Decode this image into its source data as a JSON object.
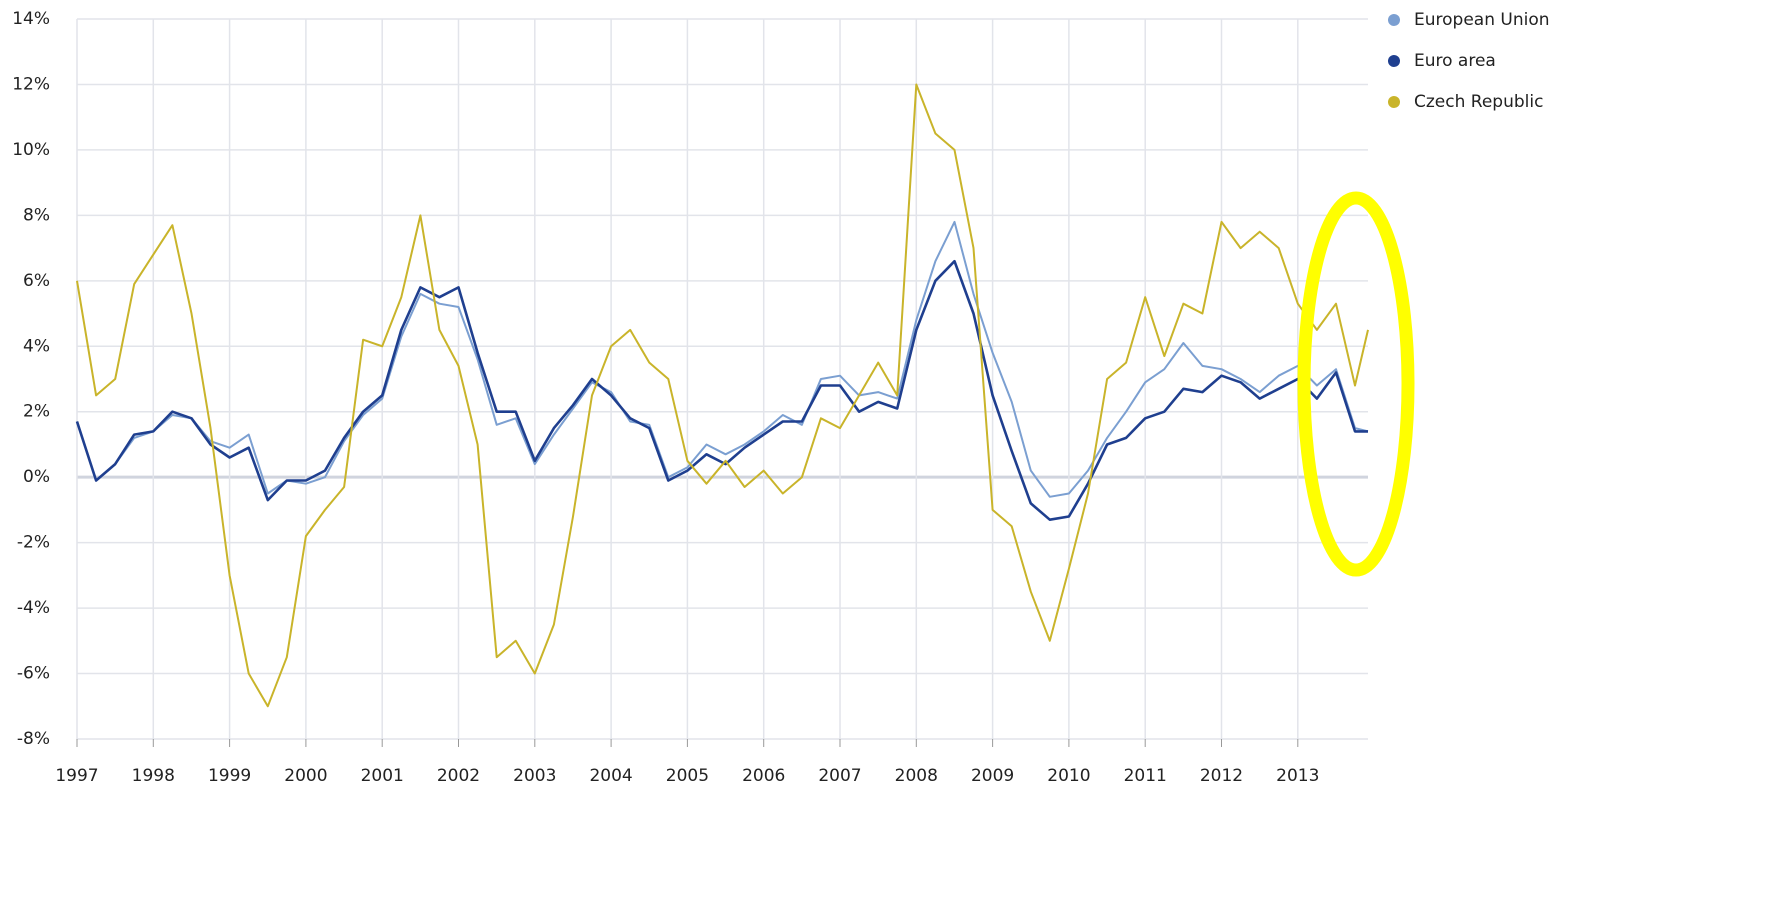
{
  "chart_data": {
    "type": "line",
    "x": [
      1997,
      1997.25,
      1997.5,
      1997.75,
      1998,
      1998.25,
      1998.5,
      1998.75,
      1999,
      1999.25,
      1999.5,
      1999.75,
      2000,
      2000.25,
      2000.5,
      2000.75,
      2001,
      2001.25,
      2001.5,
      2001.75,
      2002,
      2002.25,
      2002.5,
      2002.75,
      2003,
      2003.25,
      2003.5,
      2003.75,
      2004,
      2004.25,
      2004.5,
      2004.75,
      2005,
      2005.25,
      2005.5,
      2005.75,
      2006,
      2006.25,
      2006.5,
      2006.75,
      2007,
      2007.25,
      2007.5,
      2007.75,
      2008,
      2008.25,
      2008.5,
      2008.75,
      2009,
      2009.25,
      2009.5,
      2009.75,
      2010,
      2010.25,
      2010.5,
      2010.75,
      2011,
      2011.25,
      2011.5,
      2011.75,
      2012,
      2012.25,
      2012.5,
      2012.75,
      2013,
      2013.25,
      2013.5,
      2013.75,
      2013.92
    ],
    "series": [
      {
        "name": "European Union",
        "color": "#7b9fd1",
        "values": [
          1.7,
          -0.1,
          0.4,
          1.2,
          1.4,
          1.9,
          1.8,
          1.1,
          0.9,
          1.3,
          -0.5,
          -0.1,
          -0.2,
          0.0,
          1.1,
          1.9,
          2.4,
          4.3,
          5.6,
          5.3,
          5.2,
          3.6,
          1.6,
          1.8,
          0.4,
          1.3,
          2.1,
          2.9,
          2.6,
          1.7,
          1.6,
          0.0,
          0.3,
          1.0,
          0.7,
          1.0,
          1.4,
          1.9,
          1.6,
          3.0,
          3.1,
          2.5,
          2.6,
          2.4,
          4.8,
          6.6,
          7.8,
          5.6,
          3.8,
          2.3,
          0.2,
          -0.6,
          -0.5,
          0.2,
          1.2,
          2.0,
          2.9,
          3.3,
          4.1,
          3.4,
          3.3,
          3.0,
          2.6,
          3.1,
          3.4,
          2.8,
          3.3,
          1.5,
          1.4
        ]
      },
      {
        "name": "Euro area",
        "color": "#1f3f8f",
        "values": [
          1.7,
          -0.1,
          0.4,
          1.3,
          1.4,
          2.0,
          1.8,
          1.0,
          0.6,
          0.9,
          -0.7,
          -0.1,
          -0.1,
          0.2,
          1.2,
          2.0,
          2.5,
          4.5,
          5.8,
          5.5,
          5.8,
          3.8,
          2.0,
          2.0,
          0.5,
          1.5,
          2.2,
          3.0,
          2.5,
          1.8,
          1.5,
          -0.1,
          0.2,
          0.7,
          0.4,
          0.9,
          1.3,
          1.7,
          1.7,
          2.8,
          2.8,
          2.0,
          2.3,
          2.1,
          4.5,
          6.0,
          6.6,
          5.0,
          2.5,
          0.8,
          -0.8,
          -1.3,
          -1.2,
          -0.2,
          1.0,
          1.2,
          1.8,
          2.0,
          2.7,
          2.6,
          3.1,
          2.9,
          2.4,
          2.7,
          3.0,
          2.4,
          3.2,
          1.4,
          1.4
        ]
      },
      {
        "name": "Czech Republic",
        "color": "#c9b42a",
        "values": [
          6.0,
          2.5,
          3.0,
          5.9,
          6.8,
          7.7,
          5.0,
          1.5,
          -3.0,
          -6.0,
          -7.0,
          -5.5,
          -1.8,
          -1.0,
          -0.3,
          4.2,
          4.0,
          5.5,
          8.0,
          4.5,
          3.4,
          1.0,
          -5.5,
          -5.0,
          -6.0,
          -4.5,
          -1.2,
          2.5,
          4.0,
          4.5,
          3.5,
          3.0,
          0.5,
          -0.2,
          0.5,
          -0.3,
          0.2,
          -0.5,
          0.0,
          1.8,
          1.5,
          2.5,
          3.5,
          2.5,
          12.0,
          10.5,
          10.0,
          7.0,
          -1.0,
          -1.5,
          -3.5,
          -5.0,
          -2.8,
          -0.5,
          3.0,
          3.5,
          5.5,
          3.7,
          5.3,
          5.0,
          7.8,
          7.0,
          7.5,
          7.0,
          5.3,
          4.5,
          5.3,
          2.8,
          4.5
        ]
      }
    ],
    "xlim": [
      1997,
      2013.92
    ],
    "xticks": [
      1997,
      1998,
      1999,
      2000,
      2001,
      2002,
      2003,
      2004,
      2005,
      2006,
      2007,
      2008,
      2009,
      2010,
      2011,
      2012,
      2013
    ],
    "ylim": [
      -8,
      14
    ],
    "yticks": [
      {
        "value": -8,
        "label": "-8%"
      },
      {
        "value": -6,
        "label": "-6%"
      },
      {
        "value": -4,
        "label": "-4%"
      },
      {
        "value": -2,
        "label": "-2%"
      },
      {
        "value": 0,
        "label": "0%"
      },
      {
        "value": 2,
        "label": "2%"
      },
      {
        "value": 4,
        "label": "4%"
      },
      {
        "value": 6,
        "label": "6%"
      },
      {
        "value": 8,
        "label": "8%"
      },
      {
        "value": 10,
        "label": "10%"
      },
      {
        "value": 12,
        "label": "12%"
      },
      {
        "value": 14,
        "label": "14%"
      }
    ],
    "grid": true
  }
}
